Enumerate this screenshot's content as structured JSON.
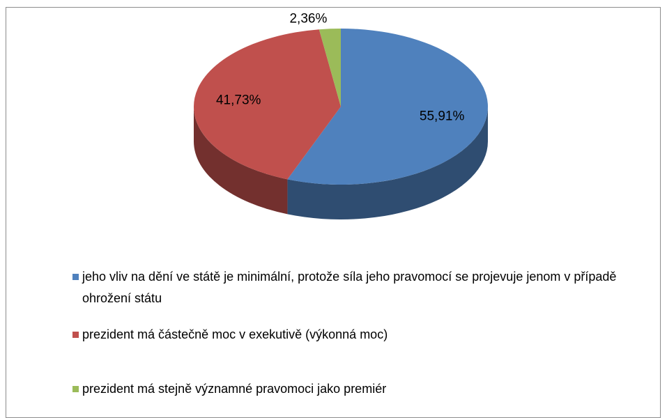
{
  "chart_data": {
    "type": "pie",
    "categories": [
      "jeho vliv na dění ve státě je minimální, protože síla jeho pravomocí se projevuje jenom v případě ohrožení státu",
      "prezident má částečně moc v exekutivě (výkonná moc)",
      "prezident má stejně významné pravomoci jako premiér"
    ],
    "values": [
      55.91,
      41.73,
      2.36
    ],
    "value_labels": [
      "55,91%",
      "41,73%",
      "2,36%"
    ],
    "colors": [
      "#4f81bd",
      "#c0504d",
      "#9bbb59"
    ],
    "legend": "bottom"
  }
}
